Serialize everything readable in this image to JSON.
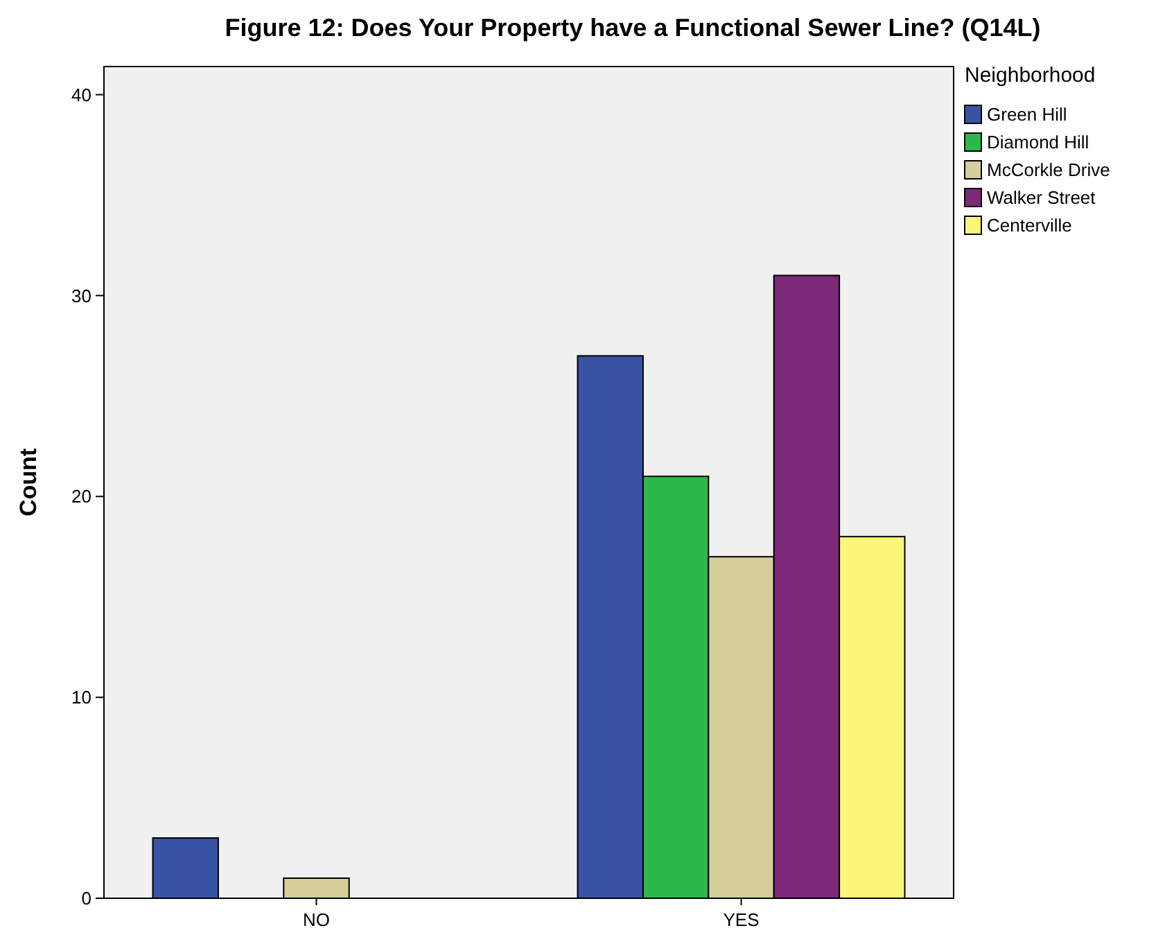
{
  "chart_data": {
    "type": "bar",
    "title": "Figure 12: Does Your Property have a Functional Sewer Line? (Q14L)",
    "ylabel": "Count",
    "legend_title": "Neighborhood",
    "categories": [
      "NO",
      "YES"
    ],
    "series": [
      {
        "name": "Green Hill",
        "color": "#3953a4",
        "values": [
          3,
          27
        ]
      },
      {
        "name": "Diamond Hill",
        "color": "#2db84a",
        "values": [
          0,
          21
        ]
      },
      {
        "name": "McCorkle Drive",
        "color": "#d4cf9a",
        "values": [
          1,
          17
        ]
      },
      {
        "name": "Walker Street",
        "color": "#7b2a7a",
        "values": [
          0,
          31
        ]
      },
      {
        "name": "Centerville",
        "color": "#fbf679",
        "values": [
          0,
          18
        ]
      }
    ],
    "ylim": [
      0,
      41.4
    ],
    "yticks": [
      0,
      10,
      20,
      30,
      40
    ],
    "grid": false,
    "legend": "top right"
  }
}
